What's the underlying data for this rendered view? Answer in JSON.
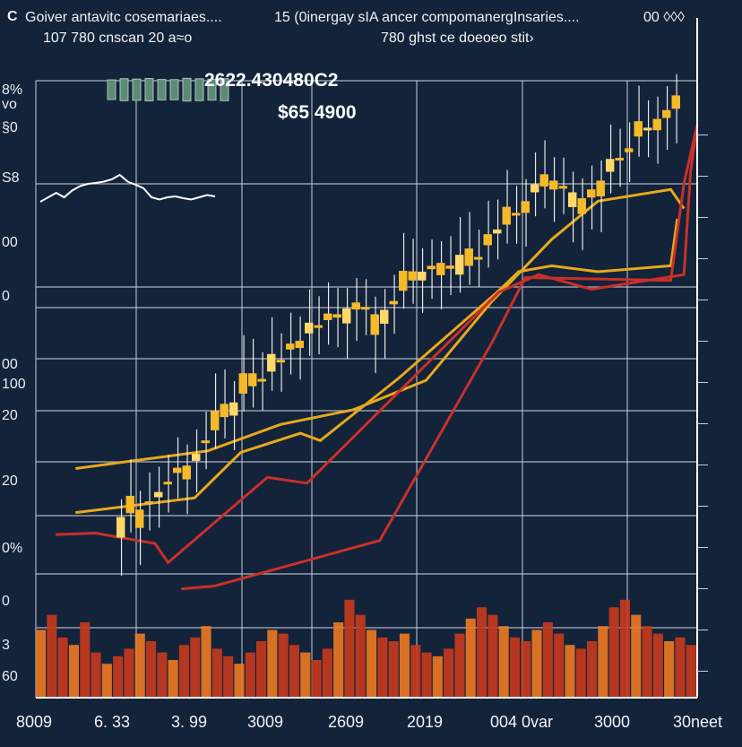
{
  "header": {
    "corner_letter": "C",
    "title_line1_left": "Goiver antavitc cosemariaes....",
    "title_line1_mid": "15 (0inergay sIA ancer compomanergInsaries....",
    "title_line1_right": "00 ◊◊◊",
    "title_line2_left": "107 780 cnscan 20 a≈o",
    "title_line2_mid": "780 ghst ce doeoeo stit›"
  },
  "annotations": {
    "price_a": "2622.430480C2",
    "price_b": "$65 4900"
  },
  "left_tick_labels": [
    "8%",
    "vo",
    "§0",
    "S8",
    "00",
    "0",
    "00",
    "100",
    "20",
    "20",
    "0%",
    "0",
    "3",
    "60"
  ],
  "x_tick_labels": [
    "8009",
    "6. 33",
    "3. 99",
    "3009",
    "2609",
    "2019",
    "004 0var",
    "3000",
    "30neet"
  ],
  "colors": {
    "background": "#13233a",
    "grid": "#c5cfdb",
    "candle_main": "#f5b92a",
    "candle_highlight": "#ffd86a",
    "trend_line": "#e7a91c",
    "red_line": "#c9302a",
    "volume_low": "#c83a1e",
    "volume_high": "#f07a22",
    "inset_line": "#ffffff",
    "inset_candle": "#5d8a76"
  },
  "chart_data": {
    "type": "line",
    "series": [
      {
        "kind": "candlestick",
        "close": [
          615,
          628,
          640,
          660,
          700,
          735,
          765,
          790,
          830,
          870,
          910,
          955,
          1005,
          1035,
          1060,
          1085,
          1110,
          1150,
          1185,
          1215,
          1240,
          1260,
          1285,
          1305,
          1325,
          1345,
          1330,
          1305,
          1320,
          1350,
          1385,
          1420,
          1450,
          1470,
          1480,
          1460,
          1440,
          1470,
          1500,
          1540,
          1580,
          1610,
          1650,
          1690,
          1720,
          1740,
          1760,
          1740,
          1720,
          1700,
          1730,
          1760,
          1790,
          1830,
          1870,
          1910,
          1940,
          1970,
          2000,
          2050
        ]
      },
      {
        "kind": "trend",
        "x": [
          0.06,
          0.26,
          0.37,
          0.48,
          0.59,
          0.69,
          0.78,
          0.85,
          0.96,
          0.98
        ],
        "y": [
          780,
          840,
          930,
          980,
          1080,
          1350,
          1560,
          1690,
          1730,
          1665
        ]
      },
      {
        "kind": "trend",
        "x": [
          0.06,
          0.24,
          0.31,
          0.4,
          0.43,
          0.55,
          0.7,
          0.73,
          0.78,
          0.85,
          0.96,
          0.97
        ],
        "y": [
          630,
          680,
          835,
          900,
          875,
          1090,
          1385,
          1450,
          1470,
          1450,
          1470,
          1630
        ]
      },
      {
        "kind": "red",
        "x": [
          0.03,
          0.09,
          0.18,
          0.2,
          0.35,
          0.41,
          0.7,
          0.76,
          0.84,
          0.98,
          0.99,
          1.0
        ],
        "y": [
          555,
          560,
          525,
          460,
          750,
          730,
          1380,
          1440,
          1390,
          1440,
          1790,
          1950
        ]
      },
      {
        "kind": "red",
        "x": [
          0.22,
          0.27,
          0.52,
          0.69,
          0.74,
          0.96,
          0.98,
          1.0
        ],
        "y": [
          370,
          380,
          535,
          1210,
          1430,
          1420,
          1750,
          1950
        ]
      }
    ],
    "volume": [
      180,
      220,
      160,
      140,
      200,
      120,
      90,
      110,
      130,
      170,
      150,
      120,
      100,
      140,
      160,
      190,
      130,
      110,
      90,
      120,
      150,
      180,
      170,
      140,
      120,
      100,
      130,
      200,
      260,
      220,
      180,
      160,
      150,
      170,
      140,
      120,
      110,
      130,
      170,
      210,
      240,
      220,
      190,
      160,
      150,
      180,
      200,
      170,
      140,
      130,
      150,
      190,
      240,
      260,
      220,
      190,
      170,
      150,
      160,
      140
    ],
    "inset": {
      "line": [
        310,
        300,
        290,
        300,
        285,
        275,
        270,
        268,
        265,
        260,
        250,
        265,
        272,
        280,
        300,
        305,
        300,
        298,
        302,
        305,
        300,
        295,
        298
      ],
      "candles": [
        0.55,
        0.7,
        0.65,
        0.72,
        0.6,
        0.58,
        0.74,
        0.69,
        0.63,
        0.7
      ]
    }
  }
}
